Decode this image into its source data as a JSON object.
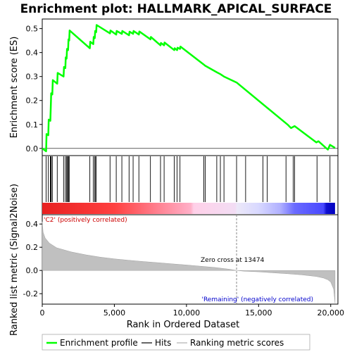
{
  "chart_data": {
    "type": "line",
    "title": "Enrichment plot: HALLMARK_APICAL_SURFACE",
    "xlabel": "Rank in Ordered Dataset",
    "ylabel_top": "Enrichment score (ES)",
    "ylabel_bottom": "Ranked list metric (Signal2Noise)",
    "xlim": [
      0,
      20500
    ],
    "x_ticks": [
      0,
      5000,
      10000,
      15000,
      20000
    ],
    "x_tick_labels": [
      "0",
      "5,000",
      "10,000",
      "15,000",
      "20,000"
    ],
    "es_ylim": [
      -0.03,
      0.54
    ],
    "es_ticks": [
      0.0,
      0.1,
      0.2,
      0.3,
      0.4,
      0.5
    ],
    "es_tick_labels": [
      "0.0",
      "0.1",
      "0.2",
      "0.3",
      "0.4",
      "0.5"
    ],
    "metric_ylim": [
      -0.29,
      0.48
    ],
    "metric_ticks": [
      -0.2,
      0.0,
      0.2,
      0.4
    ],
    "metric_tick_labels": [
      "-0.2",
      "0.0",
      "0.2",
      "0.4"
    ],
    "enrichment_profile": [
      [
        0,
        0.0
      ],
      [
        270,
        -0.012
      ],
      [
        300,
        0.06
      ],
      [
        420,
        0.055
      ],
      [
        450,
        0.12
      ],
      [
        560,
        0.115
      ],
      [
        590,
        0.17
      ],
      [
        620,
        0.23
      ],
      [
        700,
        0.225
      ],
      [
        730,
        0.285
      ],
      [
        1040,
        0.27
      ],
      [
        1070,
        0.315
      ],
      [
        1480,
        0.3
      ],
      [
        1510,
        0.34
      ],
      [
        1600,
        0.335
      ],
      [
        1630,
        0.38
      ],
      [
        1690,
        0.375
      ],
      [
        1720,
        0.415
      ],
      [
        1790,
        0.41
      ],
      [
        1820,
        0.455
      ],
      [
        1870,
        0.45
      ],
      [
        1900,
        0.492
      ],
      [
        3300,
        0.418
      ],
      [
        3330,
        0.445
      ],
      [
        3540,
        0.435
      ],
      [
        3570,
        0.465
      ],
      [
        3640,
        0.46
      ],
      [
        3670,
        0.49
      ],
      [
        3740,
        0.485
      ],
      [
        3770,
        0.515
      ],
      [
        4700,
        0.48
      ],
      [
        4730,
        0.492
      ],
      [
        5130,
        0.475
      ],
      [
        5160,
        0.49
      ],
      [
        5520,
        0.478
      ],
      [
        5550,
        0.49
      ],
      [
        6020,
        0.472
      ],
      [
        6050,
        0.487
      ],
      [
        6300,
        0.478
      ],
      [
        6330,
        0.49
      ],
      [
        6700,
        0.475
      ],
      [
        6730,
        0.488
      ],
      [
        7500,
        0.455
      ],
      [
        7530,
        0.465
      ],
      [
        8200,
        0.43
      ],
      [
        8230,
        0.44
      ],
      [
        8450,
        0.43
      ],
      [
        8480,
        0.442
      ],
      [
        9150,
        0.41
      ],
      [
        9180,
        0.418
      ],
      [
        9350,
        0.41
      ],
      [
        9380,
        0.42
      ],
      [
        9550,
        0.415
      ],
      [
        9580,
        0.425
      ],
      [
        11200,
        0.35
      ],
      [
        11300,
        0.345
      ],
      [
        12100,
        0.318
      ],
      [
        12350,
        0.31
      ],
      [
        12600,
        0.3
      ],
      [
        13474,
        0.275
      ],
      [
        17000,
        0.1
      ],
      [
        17250,
        0.085
      ],
      [
        17500,
        0.093
      ],
      [
        19000,
        0.025
      ],
      [
        19150,
        0.03
      ],
      [
        19800,
        -0.005
      ],
      [
        19950,
        0.015
      ],
      [
        20300,
        0.002
      ]
    ],
    "hits": [
      270,
      420,
      560,
      590,
      620,
      700,
      1040,
      1480,
      1600,
      1690,
      1720,
      1790,
      1820,
      1870,
      3300,
      3540,
      3640,
      3670,
      3740,
      4700,
      5130,
      5520,
      6020,
      6300,
      6700,
      7500,
      8200,
      8450,
      9150,
      9350,
      9550,
      11200,
      11300,
      12100,
      12350,
      12600,
      13474,
      14100,
      15300,
      15600,
      16900,
      17400,
      17500,
      19050,
      19950
    ],
    "metric_curve": [
      [
        0,
        0.42
      ],
      [
        60,
        0.33
      ],
      [
        200,
        0.28
      ],
      [
        500,
        0.235
      ],
      [
        1000,
        0.195
      ],
      [
        2000,
        0.16
      ],
      [
        3000,
        0.135
      ],
      [
        4000,
        0.115
      ],
      [
        5000,
        0.1
      ],
      [
        6000,
        0.088
      ],
      [
        7000,
        0.077
      ],
      [
        8000,
        0.067
      ],
      [
        9000,
        0.057
      ],
      [
        10000,
        0.047
      ],
      [
        11000,
        0.036
      ],
      [
        12000,
        0.025
      ],
      [
        13000,
        0.01
      ],
      [
        13474,
        0.0
      ],
      [
        14000,
        -0.006
      ],
      [
        15000,
        -0.012
      ],
      [
        16000,
        -0.02
      ],
      [
        17000,
        -0.028
      ],
      [
        18000,
        -0.038
      ],
      [
        19000,
        -0.052
      ],
      [
        19500,
        -0.065
      ],
      [
        19800,
        -0.08
      ],
      [
        20000,
        -0.1
      ],
      [
        20200,
        -0.16
      ],
      [
        20300,
        -0.28
      ]
    ],
    "rank_bar_gradient": [
      [
        0,
        "#e82020"
      ],
      [
        5000,
        "#ff4040"
      ],
      [
        8000,
        "#ff8090"
      ],
      [
        10300,
        "#ffb0c8"
      ],
      [
        10500,
        "#ffd0e8"
      ],
      [
        13400,
        "#f2ddf4"
      ],
      [
        13500,
        "#ece8f8"
      ],
      [
        15000,
        "#d8d8ff"
      ],
      [
        16500,
        "#b0b0ff"
      ],
      [
        17500,
        "#6a6aff"
      ],
      [
        19500,
        "#4848ff"
      ],
      [
        19700,
        "#1010d0"
      ],
      [
        20300,
        "#0000c0"
      ]
    ],
    "labels": {
      "positive": "'C2' (positively correlated)",
      "negative": "'Remaining' (negatively correlated)",
      "zero_cross": "Zero cross at 13474"
    },
    "legend": [
      "Enrichment profile",
      "Hits",
      "Ranking metric scores"
    ],
    "colors": {
      "profile": "#00ff00",
      "hits": "#000000",
      "metric_fill": "#c0c0c0",
      "positive_label": "#cc0000",
      "negative_label": "#0000cc",
      "zero_line": "#888888",
      "frame": "#000000"
    }
  }
}
